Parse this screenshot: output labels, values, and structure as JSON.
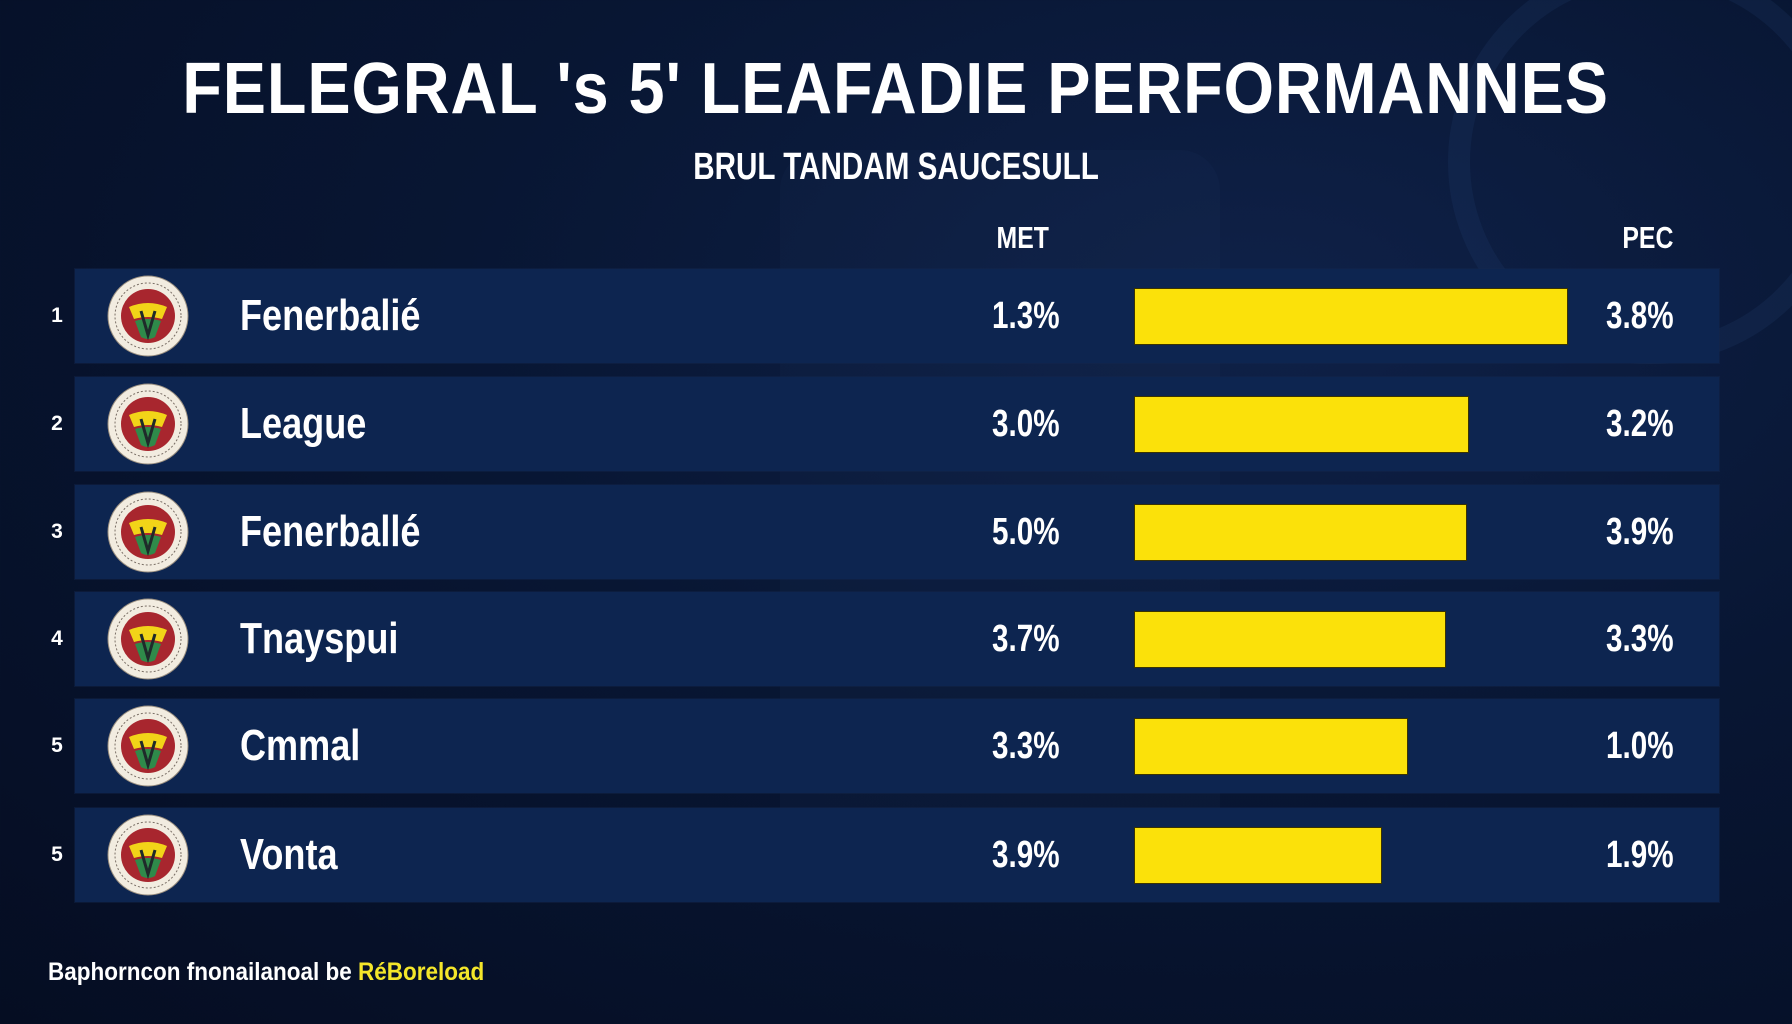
{
  "colors": {
    "background": "#081633",
    "row": "#0d2550",
    "bar": "#fbe10a",
    "footer_highlight": "#f4e62a"
  },
  "chart_data": {
    "type": "bar",
    "orientation": "horizontal",
    "title": "FELEGRAL 's 5' LEAFADIE PERFORMANNES",
    "subtitle": "BRUL TANDAM  SAUCESULL",
    "columns": {
      "left": "MET",
      "right": "PEC"
    },
    "rows": [
      {
        "rank": "1",
        "name": "Fenerbalié",
        "met": "1.3%",
        "pec": "3.8%",
        "bar_level": 1.0
      },
      {
        "rank": "2",
        "name": "League",
        "met": "3.0%",
        "pec": "3.2%",
        "bar_level": 0.77
      },
      {
        "rank": "3",
        "name": "Fenerballé",
        "met": "5.0%",
        "pec": "3.9%",
        "bar_level": 0.766
      },
      {
        "rank": "4",
        "name": "Tnayspui",
        "met": "3.7%",
        "pec": "3.3%",
        "bar_level": 0.718
      },
      {
        "rank": "5",
        "name": "Cmmal",
        "met": "3.3%",
        "pec": "1.0%",
        "bar_level": 0.63
      },
      {
        "rank": "5",
        "name": "Vonta",
        "met": "3.9%",
        "pec": "1.9%",
        "bar_level": 0.569
      }
    ],
    "icons": {
      "row_logo": "club-crest-icon"
    }
  },
  "footer": {
    "text": "Baphorncon fnonailanoal be",
    "highlight": "RéBoreload"
  }
}
